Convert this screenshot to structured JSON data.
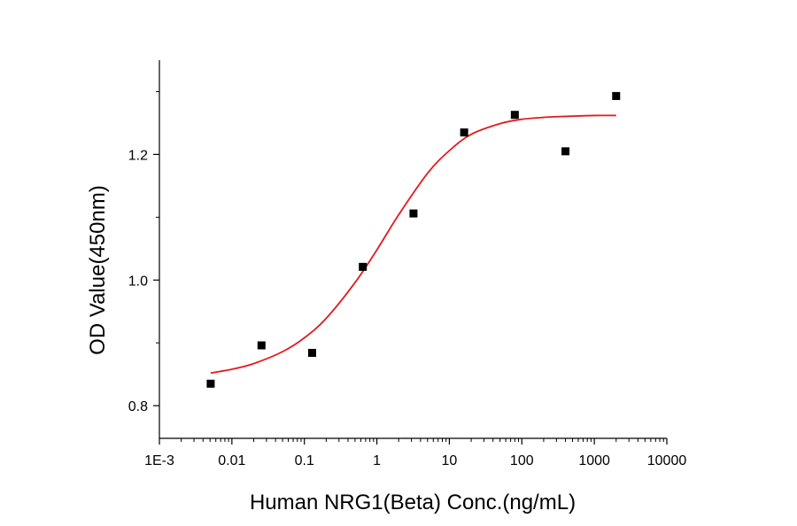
{
  "chart_data": {
    "type": "scatter",
    "title": "",
    "xlabel": "Human NRG1(Beta) Conc.(ng/mL)",
    "ylabel": "OD Value(450nm)",
    "x_scale": "log",
    "xlim": [
      0.001,
      10000
    ],
    "ylim": [
      0.748,
      1.35
    ],
    "x_ticks": [
      0.001,
      0.01,
      0.1,
      1,
      10,
      100,
      1000,
      10000
    ],
    "x_tick_labels": [
      "1E-3",
      "0.01",
      "0.1",
      "1",
      "10",
      "100",
      "1000",
      "10000"
    ],
    "y_ticks": [
      0.8,
      1.0,
      1.2
    ],
    "y_tick_labels": [
      "0.8",
      "1.0",
      "1.2"
    ],
    "y_minor_ticks": [
      0.9,
      1.1,
      1.3
    ],
    "grid": false,
    "colors": {
      "points": "#000000",
      "fit": "#e31a1c"
    },
    "series": [
      {
        "type": "scatter",
        "x": [
          0.0051,
          0.0256,
          0.128,
          0.64,
          3.2,
          16,
          80,
          400,
          2000
        ],
        "y": [
          0.835,
          0.896,
          0.884,
          1.021,
          1.106,
          1.235,
          1.263,
          1.205,
          1.293
        ]
      },
      {
        "type": "line",
        "x": [
          0.0051,
          0.01,
          0.02,
          0.05,
          0.1,
          0.2,
          0.5,
          1,
          2,
          5,
          10,
          20,
          50,
          100,
          200,
          500,
          1000,
          2000
        ],
        "y": [
          0.852,
          0.858,
          0.867,
          0.886,
          0.908,
          0.939,
          0.996,
          1.048,
          1.104,
          1.17,
          1.206,
          1.232,
          1.249,
          1.256,
          1.259,
          1.261,
          1.262,
          1.262
        ]
      }
    ]
  }
}
